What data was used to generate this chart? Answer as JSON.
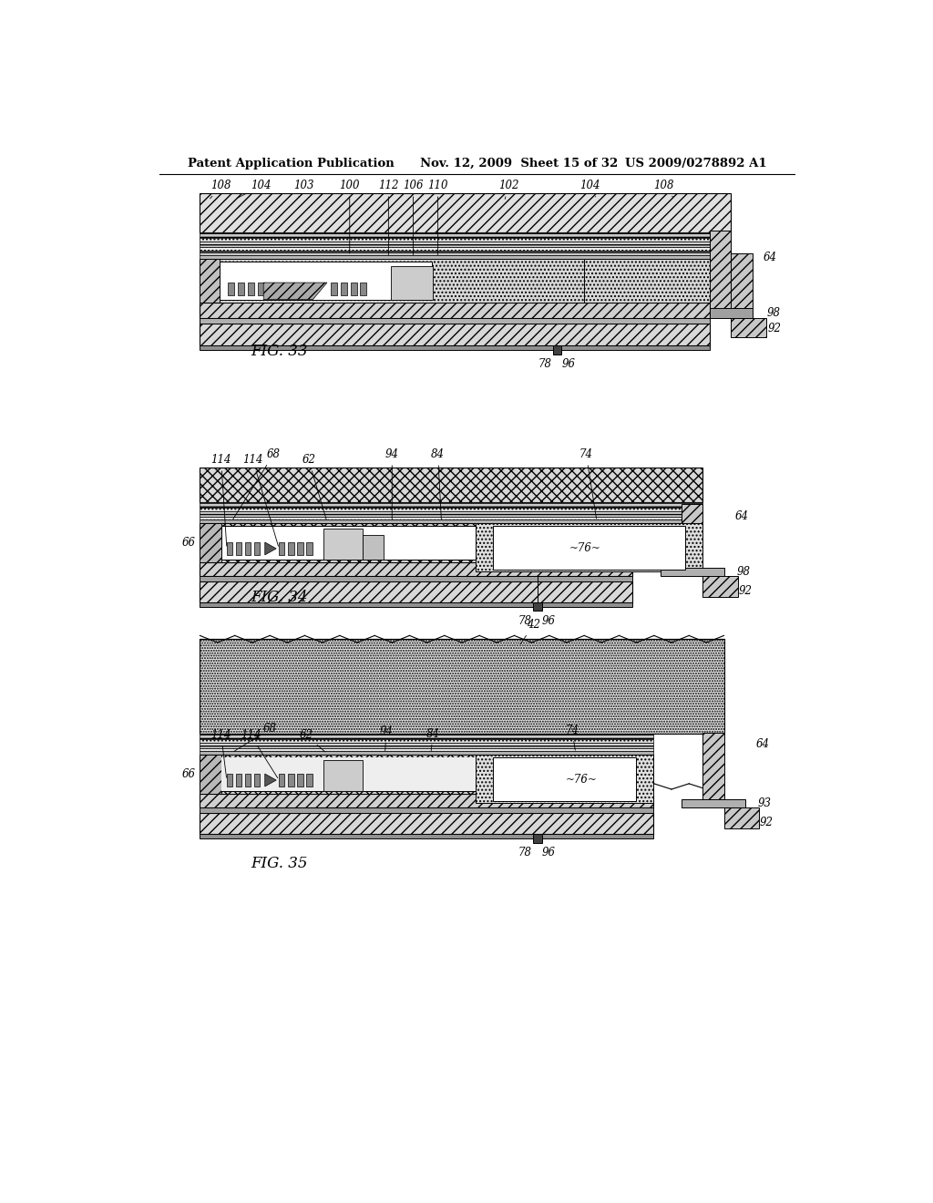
{
  "header_left": "Patent Application Publication",
  "header_mid": "Nov. 12, 2009  Sheet 15 of 32",
  "header_right": "US 2009/0278892 A1",
  "fig33_label": "FIG. 33",
  "fig34_label": "FIG. 34",
  "fig35_label": "FIG. 35",
  "bg_color": "#ffffff"
}
